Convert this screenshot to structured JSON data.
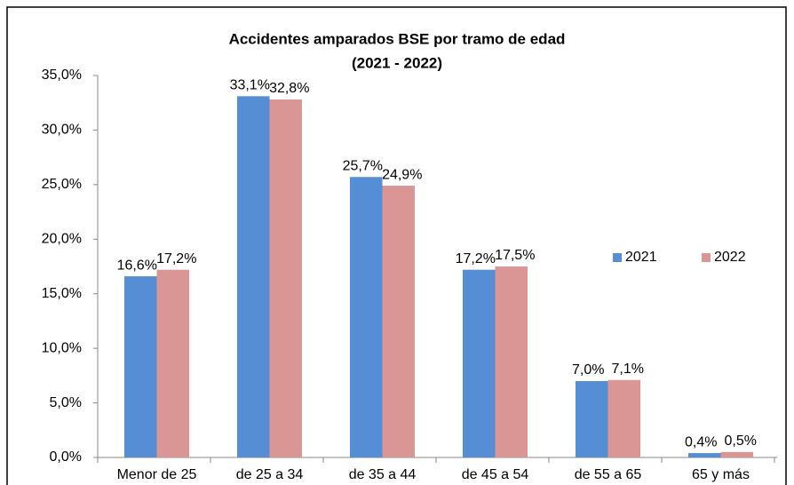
{
  "chart_data": {
    "type": "bar",
    "title": "Accidentes amparados BSE por tramo de edad",
    "subtitle": "(2021 - 2022)",
    "categories": [
      "Menor de 25",
      "de 25 a 34",
      "de 35 a 44",
      "de 45 a 54",
      "de 55 a 65",
      "65 y más"
    ],
    "series": [
      {
        "name": "2021",
        "color": "#558ed5",
        "values": [
          16.6,
          33.1,
          25.7,
          17.2,
          7.0,
          0.4
        ],
        "value_labels": [
          "16,6%",
          "33,1%",
          "25,7%",
          "17,2%",
          "7,0%",
          "0,4%"
        ]
      },
      {
        "name": "2022",
        "color": "#d99694",
        "values": [
          17.2,
          32.8,
          24.9,
          17.5,
          7.1,
          0.5
        ],
        "value_labels": [
          "17,2%",
          "32,8%",
          "24,9%",
          "17,5%",
          "7,1%",
          "0,5%"
        ]
      }
    ],
    "ylim": [
      0,
      35
    ],
    "yticks": [
      {
        "value": 0,
        "label": "0,0%"
      },
      {
        "value": 5,
        "label": "5,0%"
      },
      {
        "value": 10,
        "label": "10,0%"
      },
      {
        "value": 15,
        "label": "15,0%"
      },
      {
        "value": 20,
        "label": "20,0%"
      },
      {
        "value": 25,
        "label": "25,0%"
      },
      {
        "value": 30,
        "label": "30,0%"
      },
      {
        "value": 35,
        "label": "35,0%"
      }
    ],
    "grid": false,
    "legend": "right"
  }
}
